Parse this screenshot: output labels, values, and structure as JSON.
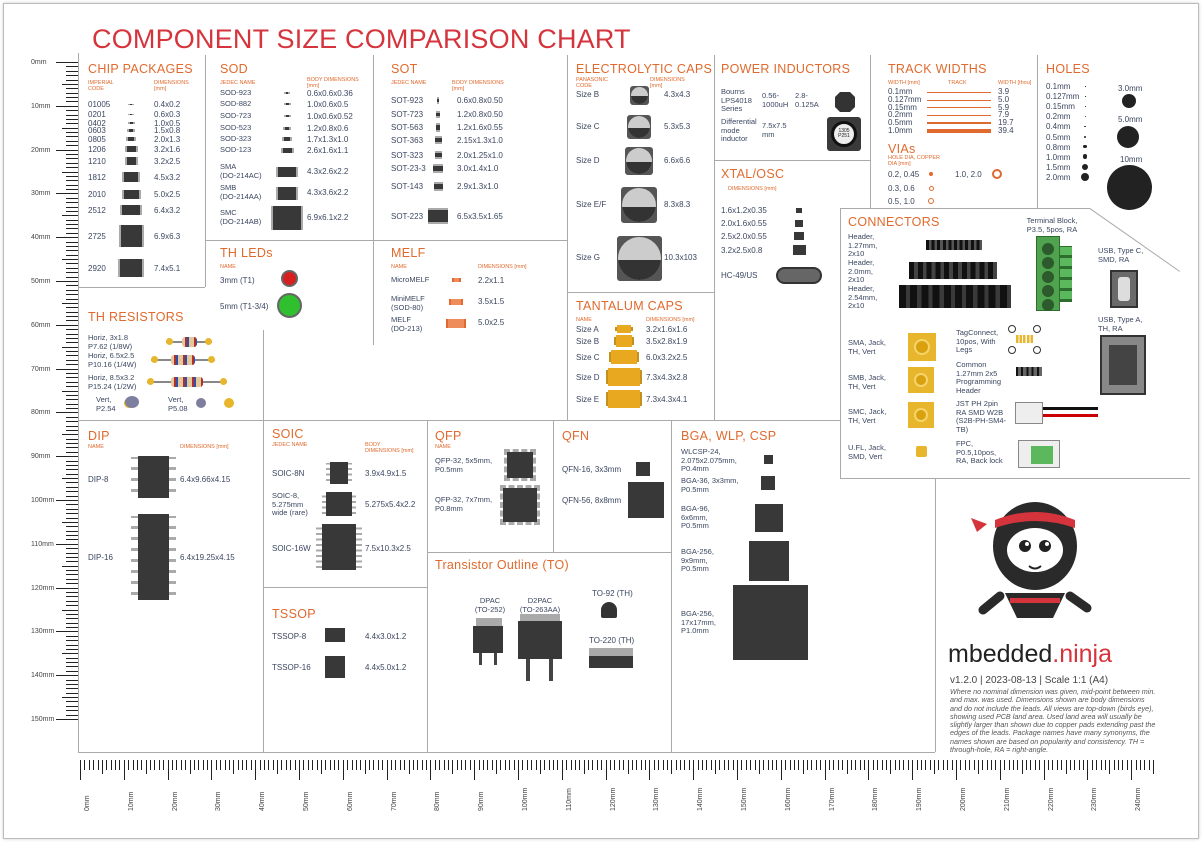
{
  "title": "COMPONENT SIZE COMPARISON CHART",
  "sections": {
    "chip": "CHIP PACKAGES",
    "sod": "SOD",
    "sot": "SOT",
    "elec": "ELECTROLYTIC CAPS",
    "ind": "POWER INDUCTORS",
    "track": "TRACK WIDTHS",
    "holes": "HOLES",
    "vias": "VIAs",
    "xtal": "XTAL/OSC",
    "conn": "CONNECTORS",
    "thr": "TH RESISTORS",
    "thled": "TH LEDs",
    "melf": "MELF",
    "tant": "TANTALUM CAPS",
    "dip": "DIP",
    "soic": "SOIC",
    "qfp": "QFP",
    "qfn": "QFN",
    "bga": "BGA, WLP, CSP",
    "tssop": "TSSOP",
    "to": "Transistor Outline (TO)"
  },
  "subs": {
    "imperial": "IMPERIAL CODE",
    "dims": "DIMENSIONS [mm]",
    "jedec": "JEDEC NAME",
    "body": "BODY DIMENSIONS [mm]",
    "panasonic": "PANASONIC CODE",
    "name": "NAME",
    "width_mm": "WIDTH [mm]",
    "trackw": "TRACK",
    "width_thou": "WIDTH [thou]",
    "holedia": "HOLE DIA, COPPER DIA [mm]",
    "xtaldims": "DIMENSIONS [mm]"
  },
  "chip": [
    [
      "01005",
      "0.4x0.2"
    ],
    [
      "0201",
      "0.6x0.3"
    ],
    [
      "0402",
      "1.0x0.5"
    ],
    [
      "0603",
      "1.5x0.8"
    ],
    [
      "0805",
      "2.0x1.3"
    ],
    [
      "1206",
      "3.2x1.6"
    ],
    [
      "1210",
      "3.2x2.5"
    ],
    [
      "1812",
      "4.5x3.2"
    ],
    [
      "2010",
      "5.0x2.5"
    ],
    [
      "2512",
      "6.4x3.2"
    ],
    [
      "2725",
      "6.9x6.3"
    ],
    [
      "2920",
      "7.4x5.1"
    ]
  ],
  "sod": [
    [
      "SOD-923",
      "0.6x0.6x0.36"
    ],
    [
      "SOD-882",
      "1.0x0.6x0.5"
    ],
    [
      "SOD-723",
      "1.0x0.6x0.52"
    ],
    [
      "SOD-523",
      "1.2x0.8x0.6"
    ],
    [
      "SOD-323",
      "1.7x1.3x1.0"
    ],
    [
      "SOD-123",
      "2.6x1.6x1.1"
    ],
    [
      "SMA\n(DO-214AC)",
      "4.3x2.6x2.2"
    ],
    [
      "SMB\n(DO-214AA)",
      "4.3x3.6x2.2"
    ],
    [
      "SMC\n(DO-214AB)",
      "6.9x6.1x2.2"
    ]
  ],
  "sot": [
    [
      "SOT-923",
      "0.6x0.8x0.50"
    ],
    [
      "SOT-723",
      "1.2x0.8x0.50"
    ],
    [
      "SOT-563",
      "1.2x1.6x0.55"
    ],
    [
      "SOT-363",
      "2.15x1.3x1.0"
    ],
    [
      "SOT-323",
      "2.0x1.25x1.0"
    ],
    [
      "SOT-23-3",
      "3.0x1.4x1.0"
    ],
    [
      "SOT-143",
      "2.9x1.3x1.0"
    ],
    [
      "SOT-223",
      "6.5x3.5x1.65"
    ]
  ],
  "elec": [
    [
      "Size B",
      "4.3x4.3"
    ],
    [
      "Size C",
      "5.3x5.3"
    ],
    [
      "Size D",
      "6.6x6.6"
    ],
    [
      "Size E/F",
      "8.3x8.3"
    ],
    [
      "Size G",
      "10.3x103"
    ]
  ],
  "ind": {
    "a_name": "Bourns LPS4018 Series",
    "a_val": "0.56-1000uH",
    "a_cur": "2.8-0.125A",
    "b_name": "Differential mode inductor",
    "b_val": "7.5x7.5 mm",
    "chip_text": "1305 P251"
  },
  "track": [
    [
      "0.1mm",
      "3.9"
    ],
    [
      "0.127mm",
      "5.0"
    ],
    [
      "0.15mm",
      "5.9"
    ],
    [
      "0.2mm",
      "7.9"
    ],
    [
      "0.5mm",
      "19.7"
    ],
    [
      "1.0mm",
      "39.4"
    ]
  ],
  "vias": [
    "0.2, 0.45",
    "1.0, 2.0",
    "0.3, 0.6",
    "0.5, 1.0"
  ],
  "holes": [
    "0.1mm",
    "0.127mm",
    "0.15mm",
    "0.2mm",
    "0.4mm",
    "0.5mm",
    "0.8mm",
    "1.0mm",
    "1.5mm",
    "2.0mm"
  ],
  "holes_big": [
    "3.0mm",
    "5.0mm",
    "10mm"
  ],
  "xtal": [
    "1.6x1.2x0.35",
    "2.0x1.6x0.55",
    "2.5x2.0x0.55",
    "3.2x2.5x0.8",
    "HC-49/US"
  ],
  "conn": {
    "h127": "Header, 1.27mm, 2x10",
    "h200": "Header, 2.0mm, 2x10",
    "h254": "Header, 2.54mm, 2x10",
    "terminal": "Terminal Block, P3.5, 5pos, RA",
    "usbc": "USB, Type C, SMD, RA",
    "usba": "USB, Type A, TH, RA",
    "sma": "SMA, Jack, TH, Vert",
    "smb": "SMB, Jack, TH, Vert",
    "smc": "SMC, Jack, TH, Vert",
    "ufl": "U.FL, Jack, SMD, Vert",
    "tagconnect": "TagConnect, 10pos, With Legs",
    "common": "Common 1.27mm 2x5 Programming Header",
    "jst": "JST PH 2pin RA SMD W2B (S2B-PH-SM4-TB)",
    "fpc": "FPC, P0.5,10pos, RA, Back lock"
  },
  "thr": [
    [
      "Horiz, 3x1.8",
      "P7.62 (1/8W)"
    ],
    [
      "Horiz, 6.5x2.5",
      "P10.16 (1/4W)"
    ],
    [
      "Horiz, 8.5x3.2",
      "P15.24 (1/2W)"
    ],
    [
      "Vert,",
      "P2.54"
    ],
    [
      "Vert,",
      "P5.08"
    ]
  ],
  "thled": [
    [
      "3mm (T1)"
    ],
    [
      "5mm (T1-3/4)"
    ]
  ],
  "melf": [
    [
      "MicroMELF",
      "2.2x1.1"
    ],
    [
      "MiniMELF\n(SOD-80)",
      "3.5x1.5"
    ],
    [
      "MELF\n(DO-213)",
      "5.0x2.5"
    ]
  ],
  "tant": [
    [
      "Size A",
      "3.2x1.6x1.6"
    ],
    [
      "Size B",
      "3.5x2.8x1.9"
    ],
    [
      "Size C",
      "6.0x3.2x2.5"
    ],
    [
      "Size D",
      "7.3x4.3x2.8"
    ],
    [
      "Size E",
      "7.3x4.3x4.1"
    ]
  ],
  "dip": [
    [
      "DIP-8",
      "6.4x9.66x4.15"
    ],
    [
      "DIP-16",
      "6.4x19.25x4.15"
    ]
  ],
  "soic": [
    [
      "SOIC-8N",
      "3.9x4.9x1.5"
    ],
    [
      "SOIC-8,\n5.275mm\nwide (rare)",
      "5.275x5.4x2.2"
    ],
    [
      "SOIC-16W",
      "7.5x10.3x2.5"
    ]
  ],
  "tssop": [
    [
      "TSSOP-8",
      "4.4x3.0x1.2"
    ],
    [
      "TSSOP-16",
      "4.4x5.0x1.2"
    ]
  ],
  "qfp": [
    [
      "QFP-32, 5x5mm,\nP0.5mm"
    ],
    [
      "QFP-32, 7x7mm,\nP0.8mm"
    ]
  ],
  "qfn": [
    [
      "QFN-16, 3x3mm"
    ],
    [
      "QFN-56, 8x8mm"
    ]
  ],
  "bga": [
    [
      "WLCSP-24,\n2.075x2.075mm,\nP0.4mm"
    ],
    [
      "BGA-36, 3x3mm,\nP0.5mm"
    ],
    [
      "BGA-96,\n6x6mm,\nP0.5mm"
    ],
    [
      "BGA-256,\n9x9mm,\nP0.5mm"
    ],
    [
      "BGA-256,\n17x17mm,\nP1.0mm"
    ]
  ],
  "to": {
    "dpak": "DPAC\n(TO-252)",
    "d2pak": "D2PAC\n(TO-263AA)",
    "to92": "TO-92 (TH)",
    "to220": "TO-220 (TH)"
  },
  "brand": {
    "a": "mbedded",
    "b": ".ninja",
    "version": "v1.2.0 | 2023-08-13 | Scale 1:1 (A4)",
    "note": "Where no nominal dimension was given, mid-point between min. and max. was used. Dimensions shown are body dimensions and do not include the leads. All views are top-down (birds eye), showing used PCB land area. Used land area will usually be slightly larger than shown due to copper pads extending past the edges of the leads. Package names have many synonyms, the names shown are based on popularity and consistency. TH = through-hole, RA = right-angle."
  },
  "ruler_v": [
    "0mm",
    "10mm",
    "20mm",
    "30mm",
    "40mm",
    "50mm",
    "60mm",
    "70mm",
    "80mm",
    "90mm",
    "100mm",
    "110mm",
    "120mm",
    "130mm",
    "140mm",
    "150mm"
  ],
  "ruler_h": [
    "0mm",
    "10mm",
    "20mm",
    "30mm",
    "40mm",
    "50mm",
    "60mm",
    "70mm",
    "80mm",
    "90mm",
    "100mm",
    "110mm",
    "120mm",
    "130mm",
    "140mm",
    "150mm",
    "160mm",
    "170mm",
    "180mm",
    "190mm",
    "200mm",
    "210mm",
    "220mm",
    "230mm",
    "240mm"
  ],
  "colors": {
    "accent": "#e06a2d",
    "title": "#d6343c",
    "ninja": "#d6343c"
  }
}
